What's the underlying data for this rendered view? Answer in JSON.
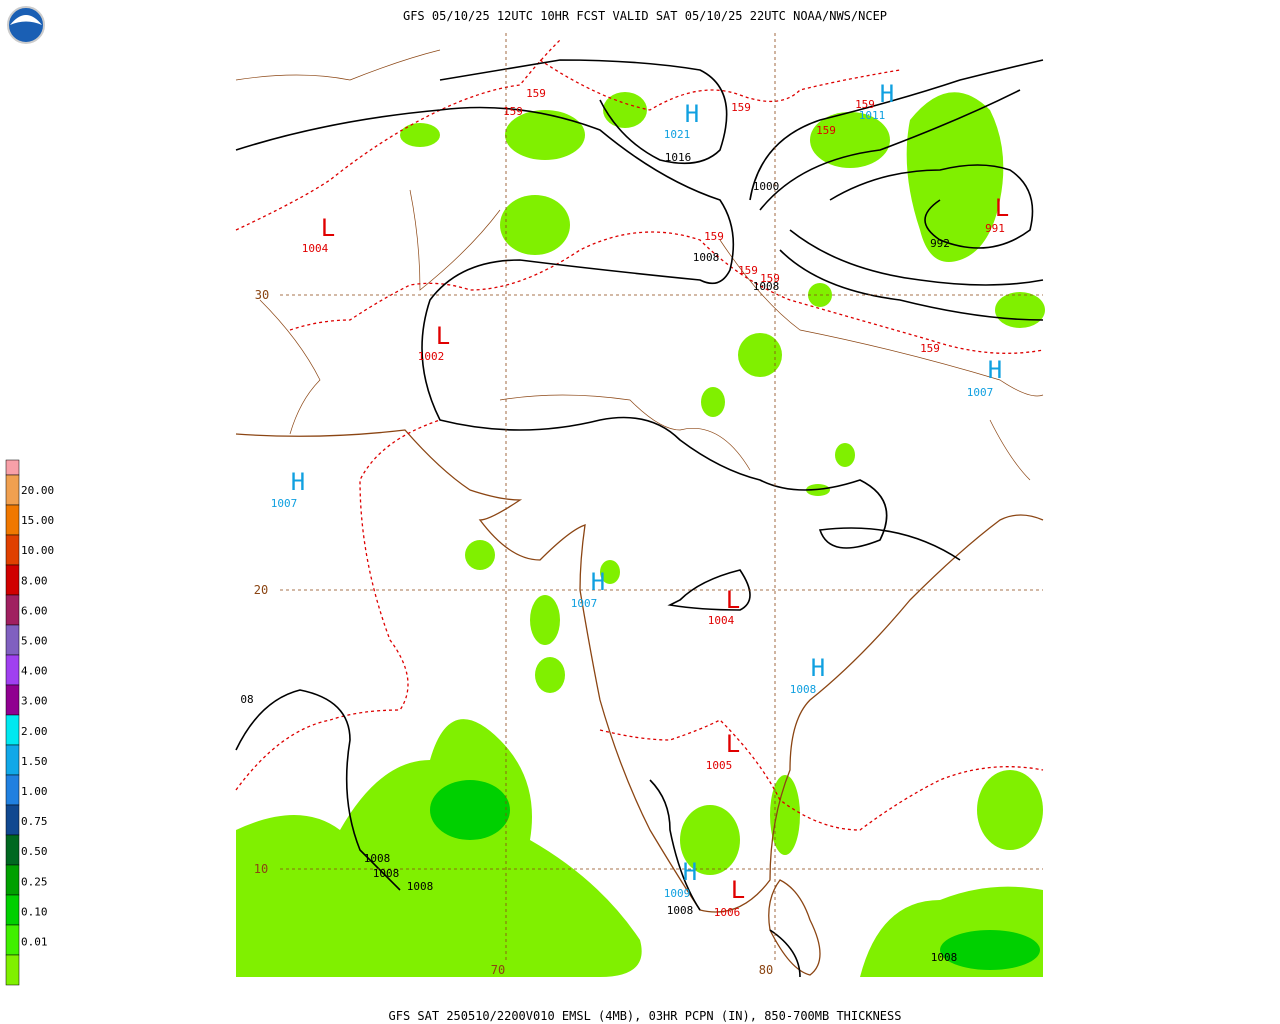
{
  "header": {
    "title": "GFS 05/10/25 12UTC 10HR FCST VALID SAT 05/10/25 22UTC NOAA/NWS/NCEP"
  },
  "footer": {
    "caption": "GFS SAT 250510/2200V010 EMSL (4MB), 03HR PCPN (IN), 850-700MB THICKNESS"
  },
  "legend": {
    "labels": [
      "20.00",
      "15.00",
      "10.00",
      "8.00",
      "6.00",
      "5.00",
      "4.00",
      "3.00",
      "2.00",
      "1.50",
      "1.00",
      "0.75",
      "0.50",
      "0.25",
      "0.10",
      "0.01"
    ]
  },
  "map": {
    "lat_labels": [
      "30",
      "20",
      "10"
    ],
    "lon_labels": [
      "70",
      "80"
    ],
    "pressure_centers": [
      {
        "label": "L",
        "value": "1004"
      },
      {
        "label": "L",
        "value": "1002"
      },
      {
        "label": "H",
        "value": "1007"
      },
      {
        "label": "H",
        "value": "1021"
      },
      {
        "label": "H",
        "value": "1011"
      },
      {
        "label": "L",
        "value": "991"
      },
      {
        "label": "H",
        "value": "1007"
      },
      {
        "label": "H",
        "value": "1007"
      },
      {
        "label": "L",
        "value": "1004"
      },
      {
        "label": "H",
        "value": "1008"
      },
      {
        "label": "L",
        "value": "1005"
      },
      {
        "label": "H",
        "value": "1009"
      },
      {
        "label": "L",
        "value": "1006"
      }
    ],
    "contour_labels": [
      "1016",
      "1000",
      "992",
      "1008",
      "1008",
      "08",
      "1008",
      "1008",
      "1008",
      "1008",
      "1008"
    ],
    "thickness_labels": [
      "159",
      "159",
      "159",
      "159",
      "159",
      "159",
      "159",
      "159",
      "159"
    ]
  }
}
